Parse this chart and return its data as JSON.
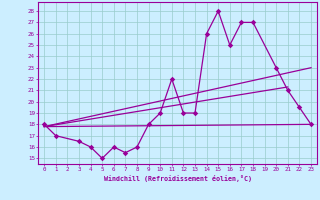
{
  "main_x": [
    0,
    1,
    3,
    4,
    5,
    6,
    7,
    8,
    9,
    10,
    11,
    12,
    13,
    14,
    15,
    16,
    17,
    18,
    20,
    21,
    22,
    23
  ],
  "main_y": [
    18,
    17,
    16.5,
    16,
    15,
    16,
    15.5,
    16,
    18,
    19.0,
    22,
    19,
    19,
    26,
    28,
    25,
    27,
    27,
    23,
    21,
    19.5,
    18
  ],
  "trend1_x": [
    0,
    23
  ],
  "trend1_y": [
    17.8,
    18.0
  ],
  "trend2_x": [
    0,
    21
  ],
  "trend2_y": [
    17.8,
    21.3
  ],
  "trend3_x": [
    0,
    23
  ],
  "trend3_y": [
    17.8,
    23.0
  ],
  "xlabel": "Windchill (Refroidissement éolien,°C)",
  "xlim": [
    -0.5,
    23.5
  ],
  "ylim": [
    14.5,
    28.8
  ],
  "yticks": [
    15,
    16,
    17,
    18,
    19,
    20,
    21,
    22,
    23,
    24,
    25,
    26,
    27,
    28
  ],
  "xticks": [
    0,
    1,
    2,
    3,
    4,
    5,
    6,
    7,
    8,
    9,
    10,
    11,
    12,
    13,
    14,
    15,
    16,
    17,
    18,
    19,
    20,
    21,
    22,
    23
  ],
  "bg_color": "#cceeff",
  "line_color": "#990099",
  "grid_color": "#99cccc"
}
